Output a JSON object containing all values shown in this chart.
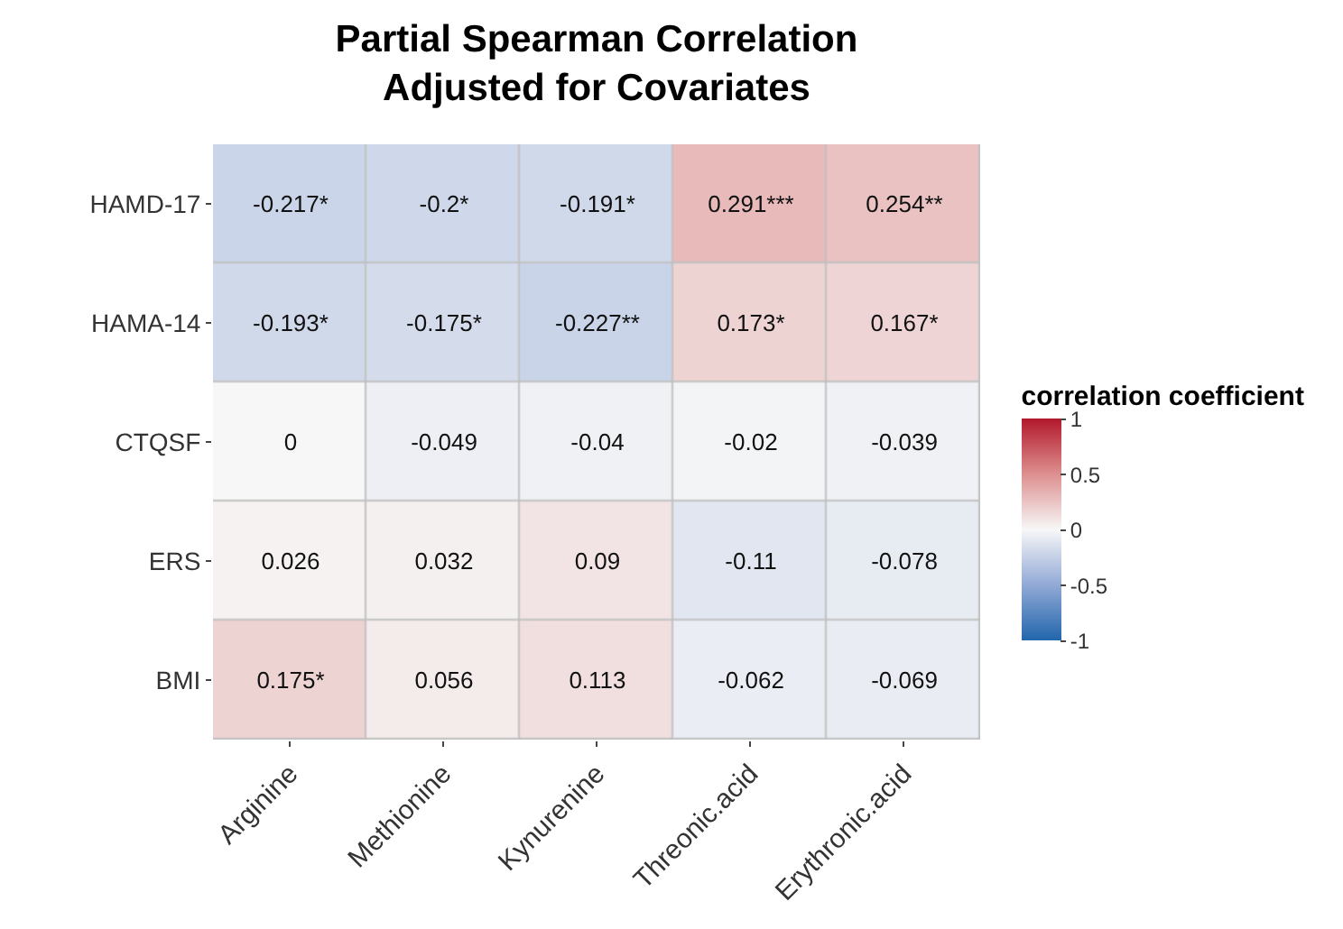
{
  "chart_data": {
    "type": "heatmap",
    "title": "Partial Spearman Correlation\nAdjusted for Covariates",
    "clabel": "correlation coefficient",
    "categories": [
      "Arginine",
      "Methionine",
      "Kynurenine",
      "Threonic.acid",
      "Erythronic.acid"
    ],
    "y_categories": [
      "HAMD-17",
      "HAMA-14",
      "CTQSF",
      "ERS",
      "BMI"
    ],
    "cells": [
      [
        -0.217,
        -0.2,
        -0.191,
        0.291,
        0.254
      ],
      [
        -0.193,
        -0.175,
        -0.227,
        0.173,
        0.167
      ],
      [
        0,
        -0.049,
        -0.04,
        -0.02,
        -0.039
      ],
      [
        0.026,
        0.032,
        0.09,
        -0.11,
        -0.078
      ],
      [
        0.175,
        0.056,
        0.113,
        -0.062,
        -0.069
      ]
    ],
    "cell_labels": [
      [
        "-0.217*",
        "-0.2*",
        "-0.191*",
        "0.291***",
        "0.254**"
      ],
      [
        "-0.193*",
        "-0.175*",
        "-0.227**",
        "0.173*",
        "0.167*"
      ],
      [
        "0",
        "-0.049",
        "-0.04",
        "-0.02",
        "-0.039"
      ],
      [
        "0.026",
        "0.032",
        "0.09",
        "-0.11",
        "-0.078"
      ],
      [
        "0.175*",
        "0.056",
        "0.113",
        "-0.062",
        "-0.069"
      ]
    ],
    "clim": [
      -1,
      1
    ],
    "cticks": [
      -1,
      -0.5,
      0,
      0.5,
      1
    ]
  }
}
